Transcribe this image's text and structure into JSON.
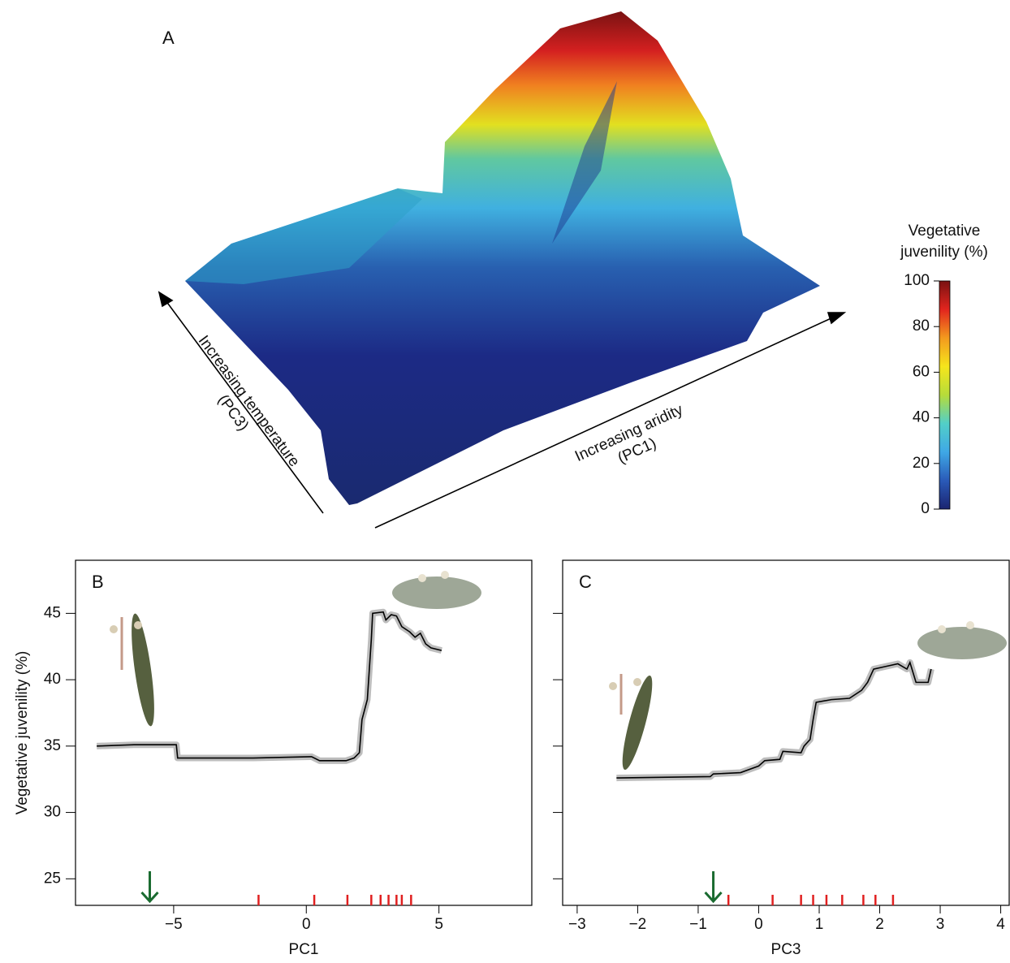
{
  "chart_data": [
    {
      "type": "surface",
      "panel_label": "A",
      "axis_labels": [
        [
          "Increasing temperature",
          "(PC3)"
        ],
        [
          "Increasing aridity",
          "(PC1)"
        ]
      ],
      "colorbar_title": [
        "Vegetative",
        "juvenility (%)"
      ],
      "clim": [
        0,
        100
      ],
      "cticks": [
        0,
        20,
        40,
        60,
        80,
        100
      ],
      "colormap": [
        "#1b2470",
        "#2a5ab8",
        "#3fa8e6",
        "#52cfc8",
        "#b6dc3a",
        "#f6e51c",
        "#f39a1e",
        "#e2251e",
        "#7a1212"
      ]
    },
    {
      "type": "line",
      "panel_label": "B",
      "xlabel": "PC1",
      "ylabel": "Vegetative juvenility (%)",
      "x": [
        -7.9,
        -6.5,
        -4.9,
        -4.85,
        -2,
        0.2,
        0.5,
        1.5,
        1.8,
        2.0,
        2.1,
        2.3,
        2.45,
        2.5,
        2.9,
        3.0,
        3.2,
        3.4,
        3.6,
        3.9,
        4.1,
        4.3,
        4.5,
        4.7,
        5.1
      ],
      "values": [
        35.0,
        35.1,
        35.1,
        34.1,
        34.1,
        34.2,
        33.9,
        33.9,
        34.1,
        34.5,
        37,
        38.5,
        43,
        45,
        45.1,
        44.5,
        44.9,
        44.8,
        44.0,
        43.6,
        43.2,
        43.5,
        42.7,
        42.4,
        42.2
      ],
      "color": "#000000",
      "rug": [
        -1.8,
        0.3,
        1.55,
        2.45,
        2.8,
        3.1,
        3.4,
        3.6,
        3.95
      ],
      "rug_color": "#e02020",
      "arrow_x": -5.9,
      "arrow_color": "#1a6b30",
      "xlim": [
        -8.7,
        8.5
      ],
      "ylim": [
        23.0,
        49.0
      ],
      "xticks": [
        {
          "value": -5,
          "label": "−5"
        },
        0,
        5
      ],
      "yticks": [
        25,
        30,
        35,
        40,
        45
      ],
      "show_ytick_labels": true
    },
    {
      "type": "line",
      "panel_label": "C",
      "xlabel": "PC3",
      "x": [
        -2.35,
        -0.8,
        -0.75,
        -0.3,
        0.0,
        0.1,
        0.35,
        0.4,
        0.7,
        0.75,
        0.85,
        0.9,
        0.95,
        1.2,
        1.5,
        1.7,
        1.8,
        1.9,
        2.1,
        2.3,
        2.45,
        2.5,
        2.6,
        2.8,
        2.85
      ],
      "values": [
        32.6,
        32.7,
        32.9,
        33.0,
        33.5,
        33.9,
        34.0,
        34.6,
        34.5,
        35.0,
        35.5,
        37,
        38.3,
        38.5,
        38.6,
        39.2,
        39.8,
        40.8,
        41.0,
        41.2,
        40.8,
        41.3,
        39.8,
        39.8,
        40.8
      ],
      "color": "#000000",
      "rug": [
        -0.5,
        0.23,
        0.7,
        0.9,
        1.12,
        1.38,
        1.73,
        1.93,
        2.22
      ],
      "rug_color": "#e02020",
      "arrow_x": -0.75,
      "arrow_color": "#1a6b30",
      "xlim": [
        -3.24,
        4.14
      ],
      "ylim": [
        23.0,
        49.0
      ],
      "xticks": [
        {
          "value": -3,
          "label": "−3"
        },
        {
          "value": -2,
          "label": "−2"
        },
        {
          "value": -1,
          "label": "−1"
        },
        0,
        1,
        2,
        3,
        4
      ],
      "yticks": [
        25,
        30,
        35,
        40,
        45
      ],
      "show_ytick_labels": false
    }
  ]
}
